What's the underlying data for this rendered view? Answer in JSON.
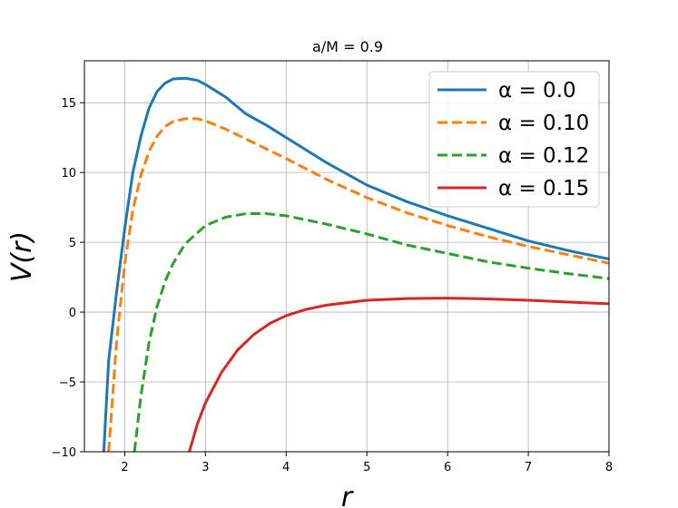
{
  "chart_data": {
    "type": "line",
    "title": "a/M = 0.9",
    "xlabel": "r",
    "ylabel": "V(r)",
    "xlim": [
      1.5,
      8
    ],
    "ylim": [
      -10,
      18
    ],
    "xticks": [
      2,
      3,
      4,
      5,
      6,
      7,
      8
    ],
    "yticks": [
      -10,
      -5,
      0,
      5,
      10,
      15
    ],
    "xtick_labels": [
      "2",
      "3",
      "4",
      "5",
      "6",
      "7",
      "8"
    ],
    "ytick_labels": [
      "−10",
      "−5",
      "0",
      "5",
      "10",
      "15"
    ],
    "grid": true,
    "legend_position": "top-right",
    "series": [
      {
        "name": "α = 0.0",
        "color": "#1f77b4",
        "dash": "solid",
        "x": [
          1.74,
          1.8,
          1.9,
          2.0,
          2.1,
          2.2,
          2.3,
          2.4,
          2.5,
          2.6,
          2.75,
          2.9,
          3.0,
          3.25,
          3.5,
          3.75,
          4.0,
          4.5,
          5.0,
          5.5,
          6.0,
          6.5,
          7.0,
          7.5,
          8.0
        ],
        "y": [
          -10,
          -3.5,
          1.5,
          6.0,
          10.0,
          12.6,
          14.6,
          15.8,
          16.4,
          16.7,
          16.75,
          16.6,
          16.3,
          15.4,
          14.2,
          13.4,
          12.5,
          10.7,
          9.1,
          7.9,
          6.9,
          6.0,
          5.1,
          4.4,
          3.8
        ]
      },
      {
        "name": "α = 0.10",
        "color": "#ff7f0e",
        "dash": "dashed",
        "x": [
          1.8,
          1.9,
          2.0,
          2.1,
          2.2,
          2.3,
          2.4,
          2.5,
          2.6,
          2.75,
          2.9,
          3.0,
          3.25,
          3.5,
          3.75,
          4.0,
          4.5,
          5.0,
          5.5,
          6.0,
          6.5,
          7.0,
          7.5,
          8.0
        ],
        "y": [
          -10,
          -2.0,
          3.5,
          7.3,
          9.8,
          11.5,
          12.6,
          13.3,
          13.65,
          13.85,
          13.85,
          13.7,
          13.1,
          12.4,
          11.7,
          11.0,
          9.5,
          8.2,
          7.1,
          6.2,
          5.4,
          4.7,
          4.1,
          3.5
        ]
      },
      {
        "name": "α = 0.12",
        "color": "#2ca02c",
        "dash": "dashed",
        "x": [
          2.12,
          2.2,
          2.3,
          2.4,
          2.5,
          2.6,
          2.75,
          3.0,
          3.25,
          3.5,
          3.75,
          4.0,
          4.5,
          5.0,
          5.5,
          6.0,
          6.5,
          7.0,
          7.5,
          8.0
        ],
        "y": [
          -10,
          -6.0,
          -2.2,
          0.4,
          2.2,
          3.5,
          4.9,
          6.2,
          6.8,
          7.05,
          7.05,
          6.9,
          6.3,
          5.6,
          4.8,
          4.2,
          3.6,
          3.15,
          2.75,
          2.4
        ]
      },
      {
        "name": "α = 0.15",
        "color": "#d62728",
        "dash": "solid",
        "x": [
          2.8,
          2.9,
          3.0,
          3.2,
          3.4,
          3.6,
          3.8,
          4.0,
          4.25,
          4.5,
          5.0,
          5.5,
          6.0,
          6.5,
          7.0,
          7.5,
          8.0
        ],
        "y": [
          -10,
          -8.0,
          -6.5,
          -4.3,
          -2.7,
          -1.6,
          -0.8,
          -0.25,
          0.2,
          0.5,
          0.85,
          0.97,
          1.0,
          0.95,
          0.85,
          0.72,
          0.6
        ]
      }
    ]
  }
}
